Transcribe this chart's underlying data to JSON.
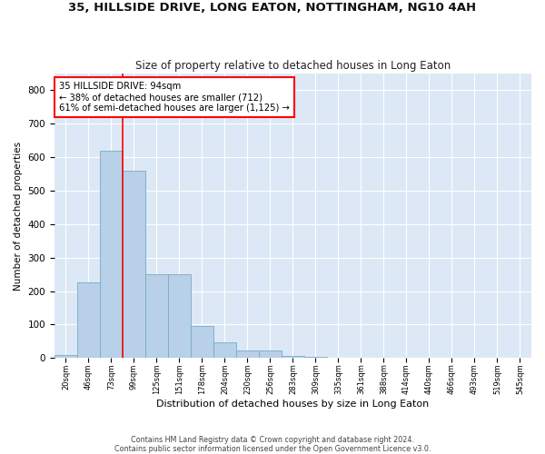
{
  "title": "35, HILLSIDE DRIVE, LONG EATON, NOTTINGHAM, NG10 4AH",
  "subtitle": "Size of property relative to detached houses in Long Eaton",
  "xlabel": "Distribution of detached houses by size in Long Eaton",
  "ylabel": "Number of detached properties",
  "bar_color": "#b8d0e8",
  "bar_edge_color": "#7aaac8",
  "background_color": "#dce8f5",
  "grid_color": "#ffffff",
  "bin_labels": [
    "20sqm",
    "46sqm",
    "73sqm",
    "99sqm",
    "125sqm",
    "151sqm",
    "178sqm",
    "204sqm",
    "230sqm",
    "256sqm",
    "283sqm",
    "309sqm",
    "335sqm",
    "361sqm",
    "388sqm",
    "414sqm",
    "440sqm",
    "466sqm",
    "493sqm",
    "519sqm",
    "545sqm"
  ],
  "bar_heights": [
    8,
    225,
    620,
    560,
    250,
    250,
    95,
    48,
    22,
    22,
    5,
    2,
    0,
    0,
    0,
    0,
    0,
    0,
    0,
    0,
    0
  ],
  "ylim": [
    0,
    850
  ],
  "yticks": [
    0,
    100,
    200,
    300,
    400,
    500,
    600,
    700,
    800
  ],
  "property_label": "35 HILLSIDE DRIVE: 94sqm",
  "annotation_line1": "← 38% of detached houses are smaller (712)",
  "annotation_line2": "61% of semi-detached houses are larger (1,125) →",
  "footer_line1": "Contains HM Land Registry data © Crown copyright and database right 2024.",
  "footer_line2": "Contains public sector information licensed under the Open Government Licence v3.0."
}
